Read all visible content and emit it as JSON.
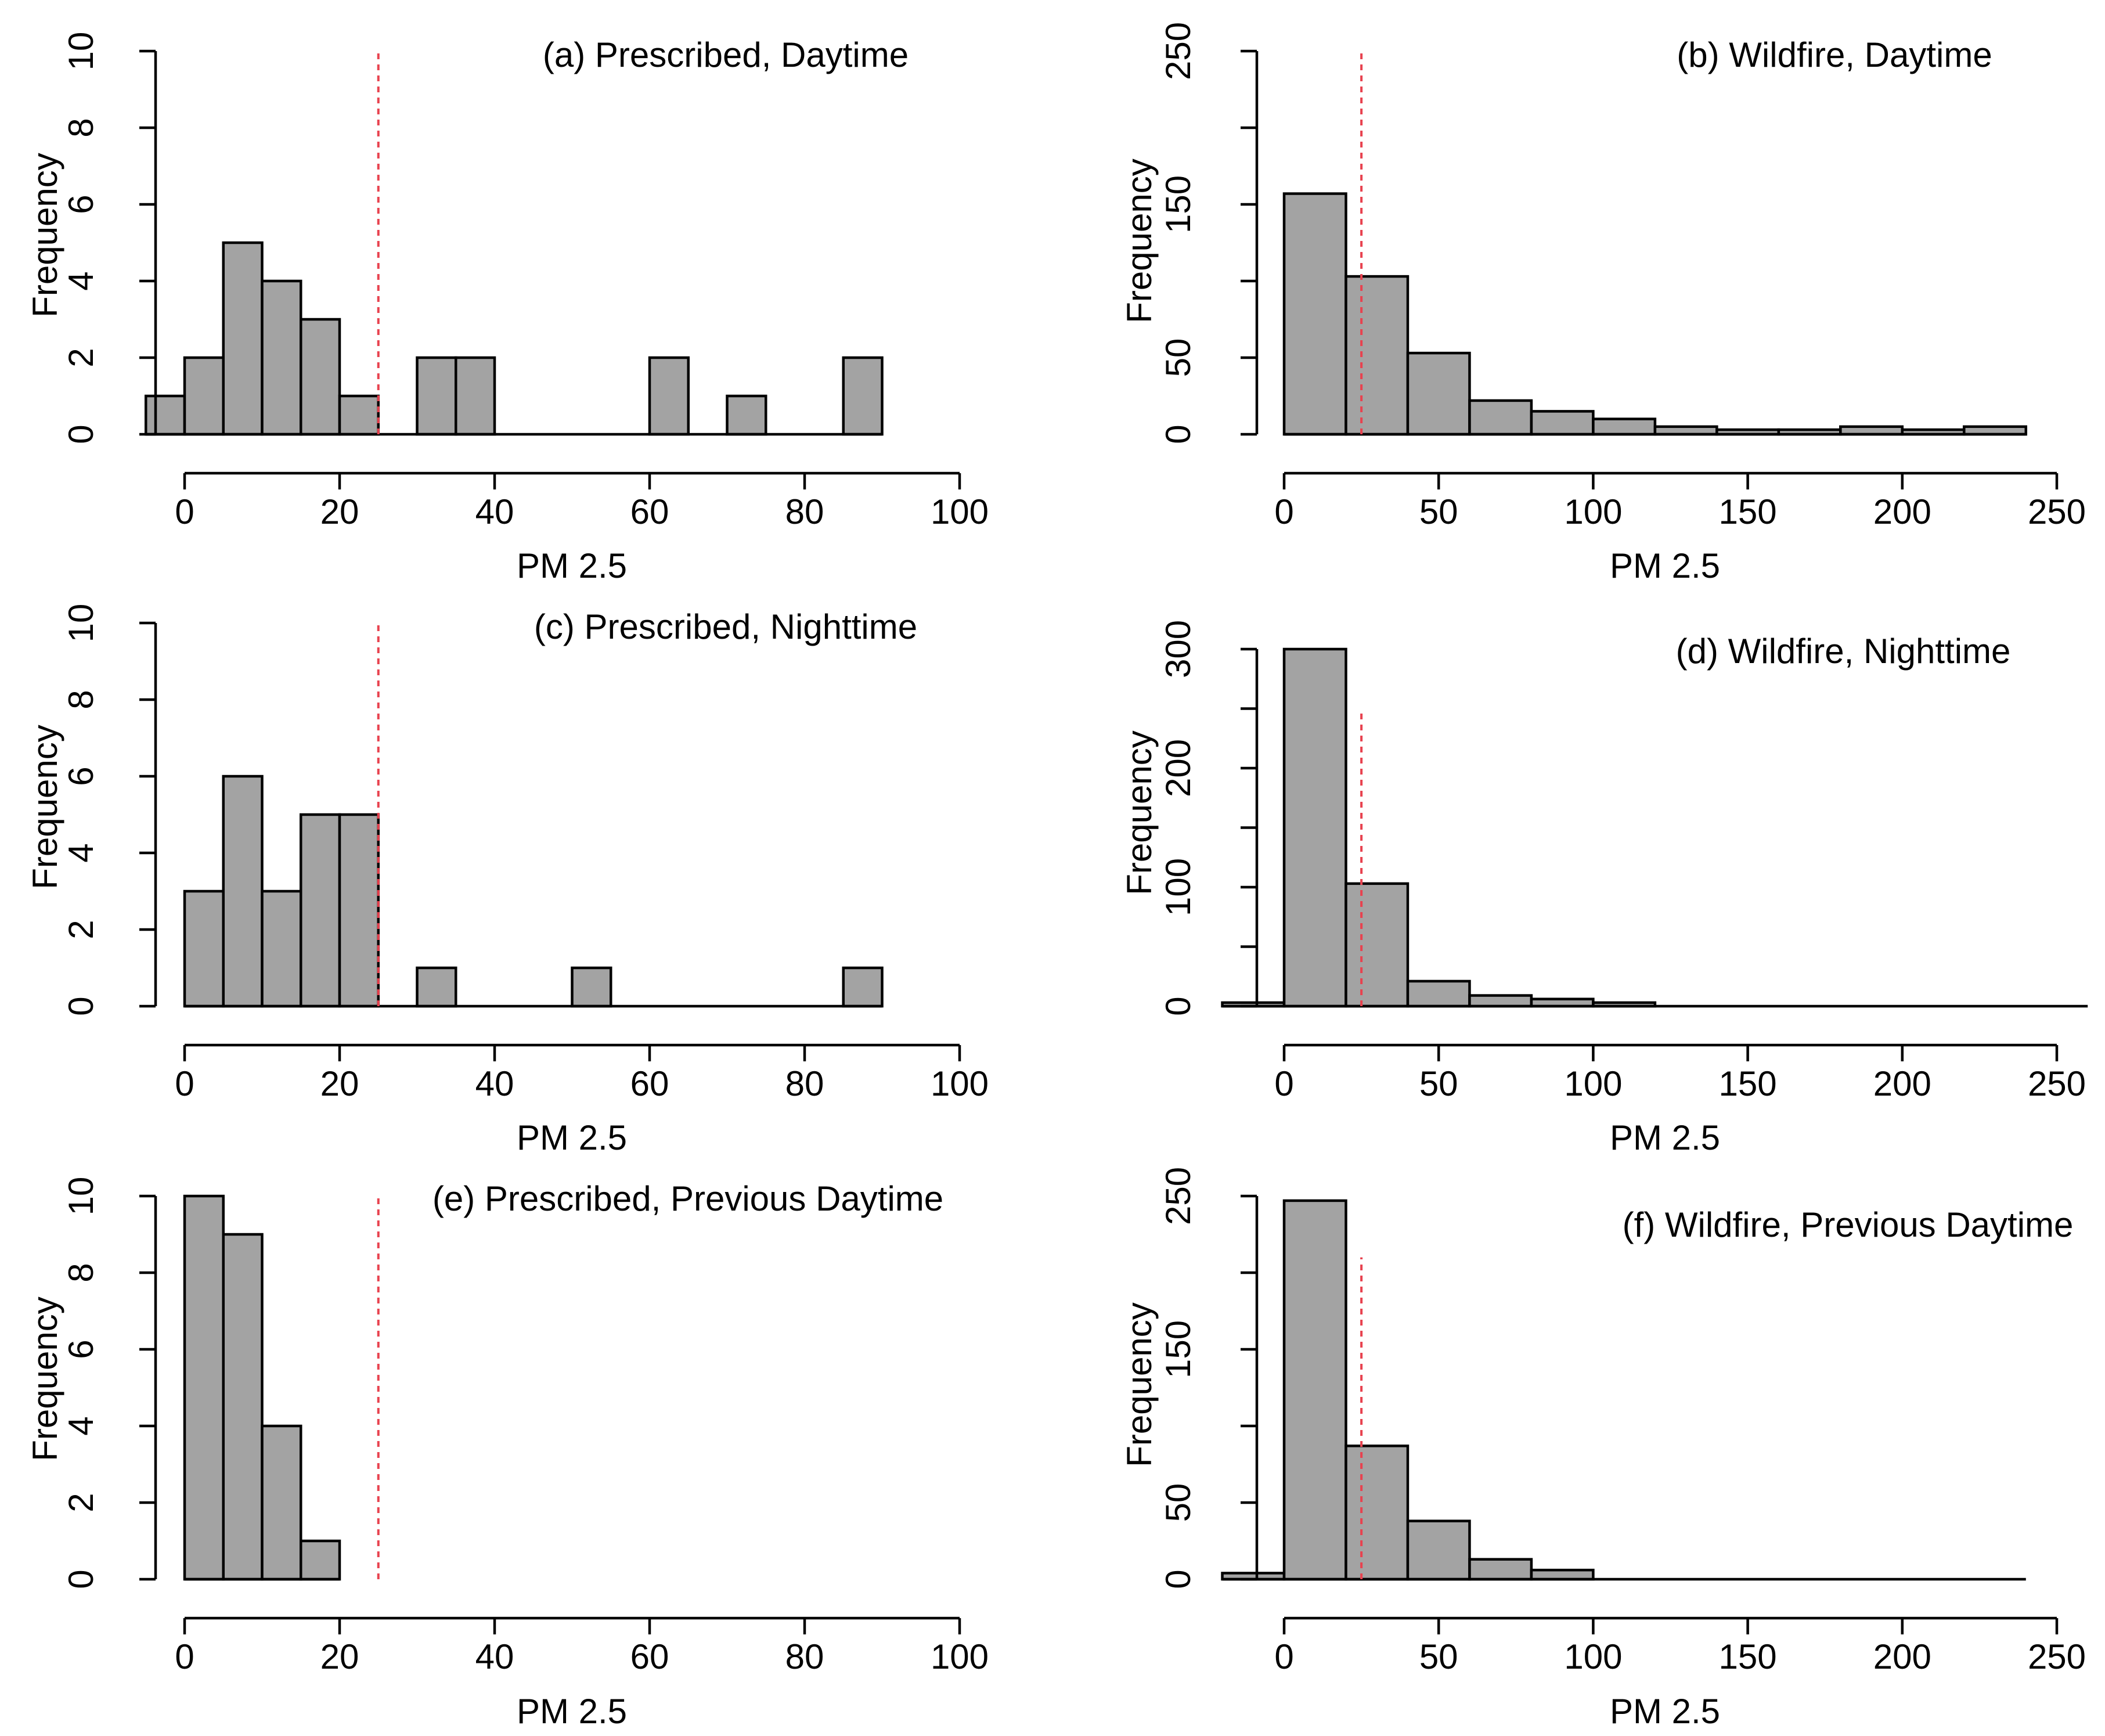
{
  "chart_data": [
    {
      "id": "a",
      "type": "bar",
      "title": "(a) Prescribed, Daytime",
      "xlabel": "PM 2.5",
      "ylabel": "Frequency",
      "xlim": [
        -5,
        100
      ],
      "ylim": [
        0,
        10
      ],
      "xticks": [
        0,
        20,
        40,
        60,
        80,
        100
      ],
      "yticks": [
        0,
        2,
        4,
        6,
        8,
        10
      ],
      "bin_width": 5,
      "bins": [
        {
          "x0": -5,
          "x1": 0,
          "count": 1
        },
        {
          "x0": 0,
          "x1": 5,
          "count": 2
        },
        {
          "x0": 5,
          "x1": 10,
          "count": 5
        },
        {
          "x0": 10,
          "x1": 15,
          "count": 4
        },
        {
          "x0": 15,
          "x1": 20,
          "count": 3
        },
        {
          "x0": 20,
          "x1": 25,
          "count": 1
        },
        {
          "x0": 25,
          "x1": 30,
          "count": 0
        },
        {
          "x0": 30,
          "x1": 35,
          "count": 2
        },
        {
          "x0": 35,
          "x1": 40,
          "count": 2
        },
        {
          "x0": 40,
          "x1": 45,
          "count": 0
        },
        {
          "x0": 45,
          "x1": 50,
          "count": 0
        },
        {
          "x0": 50,
          "x1": 55,
          "count": 0
        },
        {
          "x0": 55,
          "x1": 60,
          "count": 0
        },
        {
          "x0": 60,
          "x1": 65,
          "count": 2
        },
        {
          "x0": 65,
          "x1": 70,
          "count": 0
        },
        {
          "x0": 70,
          "x1": 75,
          "count": 1
        },
        {
          "x0": 75,
          "x1": 80,
          "count": 0
        },
        {
          "x0": 80,
          "x1": 85,
          "count": 0
        },
        {
          "x0": 85,
          "x1": 90,
          "count": 2
        }
      ],
      "reference_line": {
        "x": 25,
        "y_top": 10,
        "color": "#e8424f",
        "style": "dotted"
      }
    },
    {
      "id": "b",
      "type": "bar",
      "title": "(b) Wildfire, Daytime",
      "xlabel": "PM 2.5",
      "ylabel": "Frequency",
      "xlim": [
        0,
        250
      ],
      "ylim": [
        0,
        250
      ],
      "xticks": [
        0,
        50,
        100,
        150,
        200,
        250
      ],
      "yticks": [
        0,
        50,
        100,
        150,
        200,
        250
      ],
      "ytick_labels_shown": [
        "0",
        "50",
        "150",
        "250"
      ],
      "bin_width": 20,
      "bins": [
        {
          "x0": 0,
          "x1": 20,
          "count": 157
        },
        {
          "x0": 20,
          "x1": 40,
          "count": 103
        },
        {
          "x0": 40,
          "x1": 60,
          "count": 53
        },
        {
          "x0": 60,
          "x1": 80,
          "count": 22
        },
        {
          "x0": 80,
          "x1": 100,
          "count": 15
        },
        {
          "x0": 100,
          "x1": 120,
          "count": 10
        },
        {
          "x0": 120,
          "x1": 140,
          "count": 5
        },
        {
          "x0": 140,
          "x1": 160,
          "count": 3
        },
        {
          "x0": 160,
          "x1": 180,
          "count": 3
        },
        {
          "x0": 180,
          "x1": 200,
          "count": 5
        },
        {
          "x0": 200,
          "x1": 220,
          "count": 3
        },
        {
          "x0": 220,
          "x1": 240,
          "count": 5
        }
      ],
      "reference_line": {
        "x": 25,
        "y_top": 250,
        "color": "#e8424f",
        "style": "dotted"
      }
    },
    {
      "id": "c",
      "type": "bar",
      "title": "(c) Prescribed, Nighttime",
      "xlabel": "PM 2.5",
      "ylabel": "Frequency",
      "xlim": [
        0,
        100
      ],
      "ylim": [
        0,
        10
      ],
      "xticks": [
        0,
        20,
        40,
        60,
        80,
        100
      ],
      "yticks": [
        0,
        2,
        4,
        6,
        8,
        10
      ],
      "bin_width": 5,
      "bins": [
        {
          "x0": 0,
          "x1": 5,
          "count": 3
        },
        {
          "x0": 5,
          "x1": 10,
          "count": 6
        },
        {
          "x0": 10,
          "x1": 15,
          "count": 3
        },
        {
          "x0": 15,
          "x1": 20,
          "count": 5
        },
        {
          "x0": 20,
          "x1": 25,
          "count": 5
        },
        {
          "x0": 25,
          "x1": 30,
          "count": 0
        },
        {
          "x0": 30,
          "x1": 35,
          "count": 1
        },
        {
          "x0": 35,
          "x1": 40,
          "count": 0
        },
        {
          "x0": 40,
          "x1": 45,
          "count": 0
        },
        {
          "x0": 45,
          "x1": 50,
          "count": 0
        },
        {
          "x0": 50,
          "x1": 55,
          "count": 1
        },
        {
          "x0": 55,
          "x1": 60,
          "count": 0
        },
        {
          "x0": 60,
          "x1": 65,
          "count": 0
        },
        {
          "x0": 65,
          "x1": 70,
          "count": 0
        },
        {
          "x0": 70,
          "x1": 75,
          "count": 0
        },
        {
          "x0": 75,
          "x1": 80,
          "count": 0
        },
        {
          "x0": 80,
          "x1": 85,
          "count": 0
        },
        {
          "x0": 85,
          "x1": 90,
          "count": 1
        }
      ],
      "reference_line": {
        "x": 25,
        "y_top": 10,
        "color": "#e8424f",
        "style": "dotted"
      }
    },
    {
      "id": "d",
      "type": "bar",
      "title": "(d) Wildfire, Nighttime",
      "xlabel": "PM 2.5",
      "ylabel": "Frequency",
      "xlim": [
        -10,
        250
      ],
      "ylim": [
        0,
        300
      ],
      "xticks": [
        0,
        50,
        100,
        150,
        200,
        250
      ],
      "yticks": [
        0,
        50,
        100,
        150,
        200,
        250,
        300
      ],
      "ytick_labels_shown": [
        "0",
        "100",
        "200",
        "300"
      ],
      "bin_width": 20,
      "bins": [
        {
          "x0": -20,
          "x1": 0,
          "count": 3
        },
        {
          "x0": 0,
          "x1": 20,
          "count": 300
        },
        {
          "x0": 20,
          "x1": 40,
          "count": 103
        },
        {
          "x0": 40,
          "x1": 60,
          "count": 21
        },
        {
          "x0": 60,
          "x1": 80,
          "count": 9
        },
        {
          "x0": 80,
          "x1": 100,
          "count": 6
        },
        {
          "x0": 100,
          "x1": 120,
          "count": 3
        },
        {
          "x0": 120,
          "x1": 140,
          "count": 0
        },
        {
          "x0": 140,
          "x1": 160,
          "count": 0
        },
        {
          "x0": 160,
          "x1": 180,
          "count": 0
        },
        {
          "x0": 180,
          "x1": 200,
          "count": 0
        },
        {
          "x0": 200,
          "x1": 220,
          "count": 0
        },
        {
          "x0": 220,
          "x1": 240,
          "count": 0
        },
        {
          "x0": 240,
          "x1": 260,
          "count": 0
        }
      ],
      "reference_line": {
        "x": 25,
        "y_top": 250,
        "color": "#e8424f",
        "style": "dotted"
      }
    },
    {
      "id": "e",
      "type": "bar",
      "title": "(e) Prescribed, Previous Daytime",
      "xlabel": "PM 2.5",
      "ylabel": "Frequency",
      "xlim": [
        0,
        100
      ],
      "ylim": [
        0,
        10
      ],
      "xticks": [
        0,
        20,
        40,
        60,
        80,
        100
      ],
      "yticks": [
        0,
        2,
        4,
        6,
        8,
        10
      ],
      "bin_width": 5,
      "bins": [
        {
          "x0": 0,
          "x1": 5,
          "count": 10
        },
        {
          "x0": 5,
          "x1": 10,
          "count": 9
        },
        {
          "x0": 10,
          "x1": 15,
          "count": 4
        },
        {
          "x0": 15,
          "x1": 20,
          "count": 1
        }
      ],
      "reference_line": {
        "x": 25,
        "y_top": 10,
        "color": "#e8424f",
        "style": "dotted"
      }
    },
    {
      "id": "f",
      "type": "bar",
      "title": "(f) Wildfire, Previous Daytime",
      "xlabel": "PM 2.5",
      "ylabel": "Frequency",
      "xlim": [
        -10,
        250
      ],
      "ylim": [
        0,
        250
      ],
      "xticks": [
        0,
        50,
        100,
        150,
        200,
        250
      ],
      "yticks": [
        0,
        50,
        100,
        150,
        200,
        250
      ],
      "ytick_labels_shown": [
        "0",
        "50",
        "150",
        "250"
      ],
      "bin_width": 20,
      "bins": [
        {
          "x0": -20,
          "x1": 0,
          "count": 4
        },
        {
          "x0": 0,
          "x1": 20,
          "count": 247
        },
        {
          "x0": 20,
          "x1": 40,
          "count": 87
        },
        {
          "x0": 40,
          "x1": 60,
          "count": 38
        },
        {
          "x0": 60,
          "x1": 80,
          "count": 13
        },
        {
          "x0": 80,
          "x1": 100,
          "count": 6
        },
        {
          "x0": 100,
          "x1": 120,
          "count": 0
        },
        {
          "x0": 120,
          "x1": 140,
          "count": 0
        },
        {
          "x0": 140,
          "x1": 160,
          "count": 0
        },
        {
          "x0": 160,
          "x1": 180,
          "count": 0
        },
        {
          "x0": 180,
          "x1": 200,
          "count": 0
        },
        {
          "x0": 200,
          "x1": 220,
          "count": 0
        },
        {
          "x0": 220,
          "x1": 240,
          "count": 0
        }
      ],
      "reference_line": {
        "x": 25,
        "y_top": 210,
        "color": "#e8424f",
        "style": "dotted"
      }
    }
  ]
}
